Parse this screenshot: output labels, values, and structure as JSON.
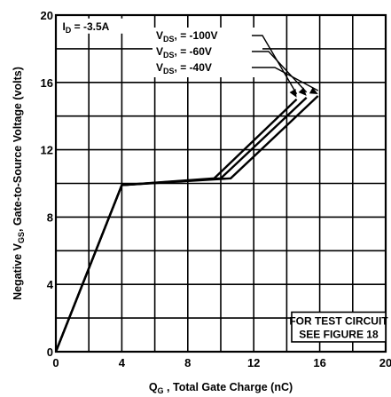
{
  "chart_data": {
    "type": "line",
    "xlabel": "Q_G , Total Gate Charge (nC)",
    "xlabel_parts": {
      "q": "Q",
      "sub": "G",
      "rest": " , Total Gate Charge (nC)"
    },
    "ylabel_parts": {
      "pre": "Negative  V",
      "sub": "GS",
      "rest": ", Gate-to-Source Voltage (volts)"
    },
    "xlim": [
      0,
      20
    ],
    "ylim": [
      0,
      20
    ],
    "x_ticks": [
      0,
      4,
      8,
      12,
      16,
      20
    ],
    "y_ticks": [
      0,
      4,
      8,
      12,
      16,
      20
    ],
    "x_tick_labels": [
      "0",
      "4",
      "8",
      "12",
      "16",
      "20"
    ],
    "y_tick_labels": [
      "0",
      "4",
      "8",
      "12",
      "16",
      "20"
    ],
    "grid": true,
    "grid_step": 2,
    "condition": {
      "pre": "I",
      "sub": "D",
      "rest": " = -3.5A"
    },
    "series": [
      {
        "name": "V_DS = -100V",
        "label_pre": "V",
        "label_sub": "DS",
        "label_rest": ", = -100V",
        "x": [
          0,
          4,
          9.6,
          14.6
        ],
        "y": [
          0,
          9.9,
          10.3,
          15.0
        ]
      },
      {
        "name": "V_DS = -60V",
        "label_pre": "V",
        "label_sub": "DS",
        "label_rest": ", = -60V",
        "x": [
          0,
          4,
          10.0,
          15.2
        ],
        "y": [
          0,
          9.9,
          10.3,
          15.1
        ]
      },
      {
        "name": "V_DS = -40V",
        "label_pre": "V",
        "label_sub": "DS",
        "label_rest": ", = -40V",
        "x": [
          0,
          4,
          10.6,
          15.9
        ],
        "y": [
          0,
          9.9,
          10.3,
          15.2
        ]
      }
    ],
    "note_lines": [
      "FOR TEST CIRCUIT",
      "SEE FIGURE 18"
    ]
  }
}
